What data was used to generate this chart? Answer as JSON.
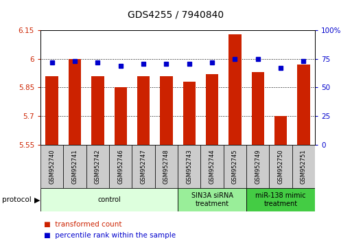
{
  "title": "GDS4255 / 7940840",
  "samples": [
    "GSM952740",
    "GSM952741",
    "GSM952742",
    "GSM952746",
    "GSM952747",
    "GSM952748",
    "GSM952743",
    "GSM952744",
    "GSM952745",
    "GSM952749",
    "GSM952750",
    "GSM952751"
  ],
  "bar_values": [
    5.91,
    6.0,
    5.91,
    5.85,
    5.91,
    5.91,
    5.88,
    5.92,
    6.13,
    5.93,
    5.7,
    5.97
  ],
  "percentile_values": [
    72,
    73,
    72,
    69,
    71,
    71,
    71,
    72,
    75,
    75,
    67,
    73
  ],
  "ylim_left": [
    5.55,
    6.15
  ],
  "ylim_right": [
    0,
    100
  ],
  "yticks_left": [
    5.55,
    5.7,
    5.85,
    6.0,
    6.15
  ],
  "yticks_right": [
    0,
    25,
    50,
    75,
    100
  ],
  "ytick_labels_left": [
    "5.55",
    "5.7",
    "5.85",
    "6",
    "6.15"
  ],
  "ytick_labels_right": [
    "0",
    "25",
    "50",
    "75",
    "100%"
  ],
  "bar_color": "#cc2200",
  "dot_color": "#0000cc",
  "plot_bg": "#ffffff",
  "groups": [
    {
      "label": "control",
      "start": 0,
      "end": 6,
      "color": "#ddffdd"
    },
    {
      "label": "SIN3A siRNA\ntreatment",
      "start": 6,
      "end": 9,
      "color": "#99ee99"
    },
    {
      "label": "miR-138 mimic\ntreatment",
      "start": 9,
      "end": 12,
      "color": "#44cc44"
    }
  ],
  "left_axis_color": "#cc2200",
  "right_axis_color": "#0000cc",
  "bar_width": 0.55,
  "sample_box_color": "#cccccc",
  "fig_width": 5.13,
  "fig_height": 3.54,
  "dpi": 100
}
